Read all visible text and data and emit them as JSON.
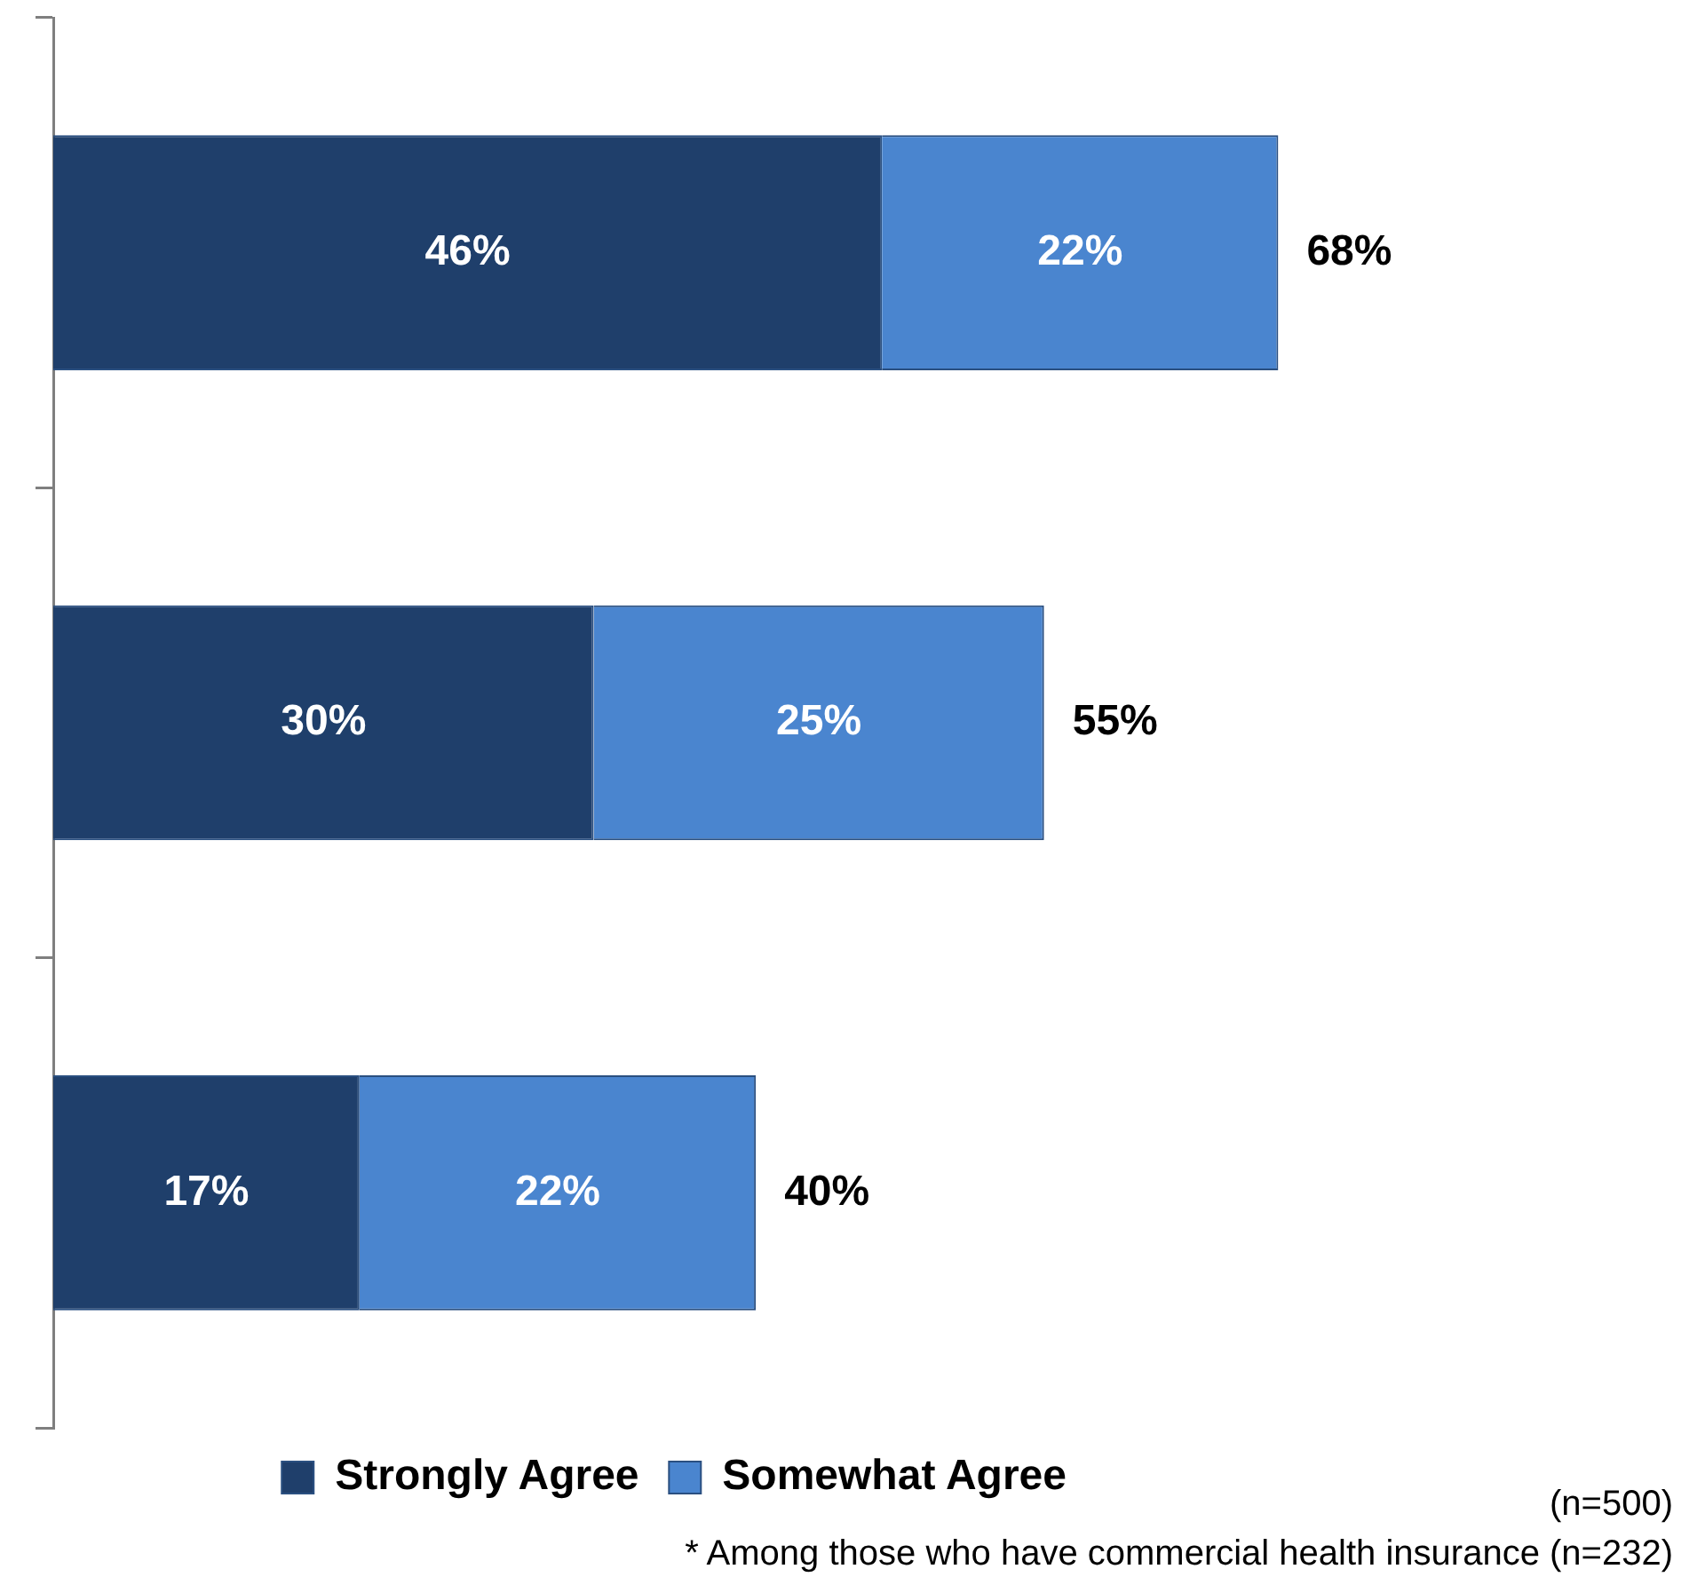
{
  "chart_data": {
    "type": "bar",
    "orientation": "horizontal",
    "stacked": true,
    "categories": [
      null,
      null,
      null
    ],
    "series": [
      {
        "name": "Strongly Agree",
        "color": "#1f3f6b",
        "values": [
          46,
          30,
          17
        ],
        "value_labels": [
          "46%",
          "30%",
          "17%"
        ]
      },
      {
        "name": "Somewhat Agree",
        "color": "#4a85cf",
        "values": [
          22,
          25,
          22
        ],
        "value_labels": [
          "22%",
          "25%",
          "22%"
        ]
      }
    ],
    "totals": [
      "68%",
      "55%",
      "40%"
    ],
    "legend": "bottom",
    "annotations": [
      "(n=500)",
      "* Among those who have commercial health insurance (n=232)"
    ]
  }
}
